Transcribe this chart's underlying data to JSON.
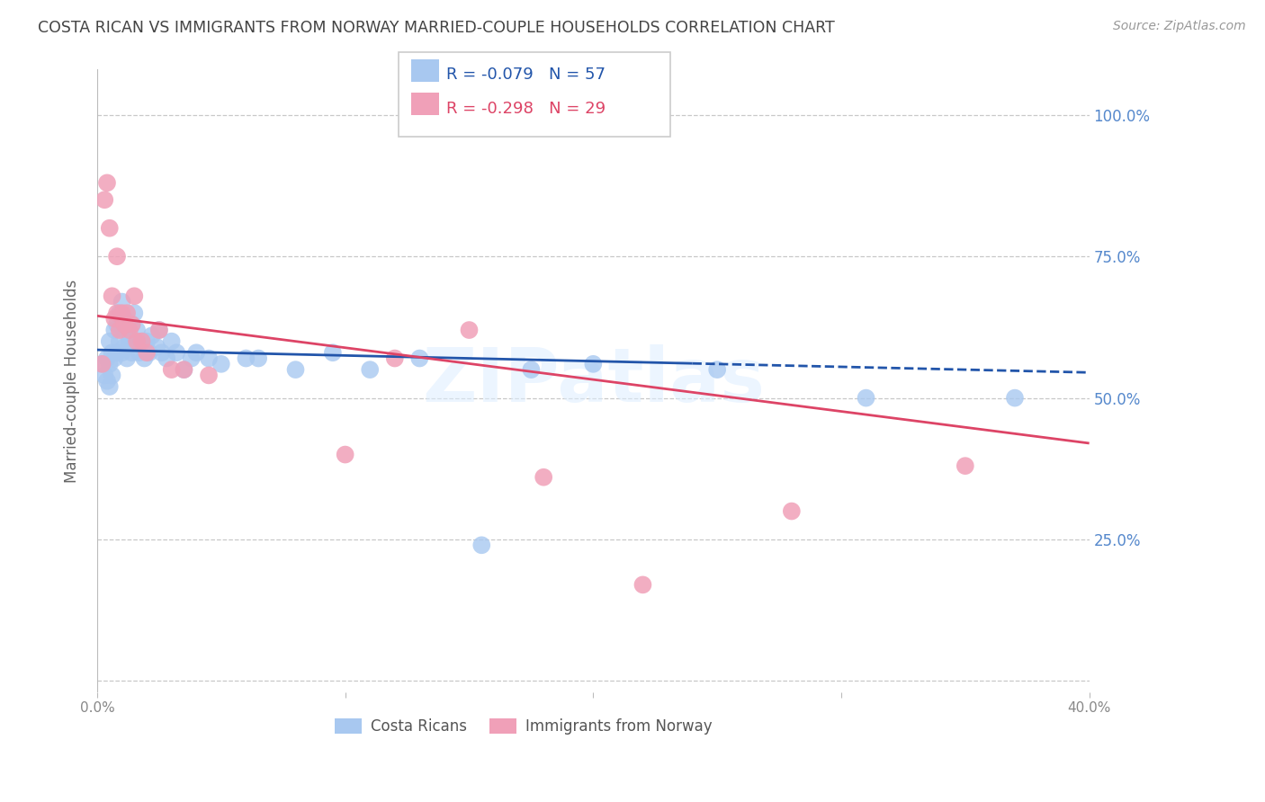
{
  "title": "COSTA RICAN VS IMMIGRANTS FROM NORWAY MARRIED-COUPLE HOUSEHOLDS CORRELATION CHART",
  "source": "Source: ZipAtlas.com",
  "ylabel": "Married-couple Households",
  "xlim": [
    0.0,
    0.4
  ],
  "ylim": [
    -0.02,
    1.08
  ],
  "legend_blue_r": "-0.079",
  "legend_blue_n": "57",
  "legend_pink_r": "-0.298",
  "legend_pink_n": "29",
  "blue_label": "Costa Ricans",
  "pink_label": "Immigrants from Norway",
  "background_color": "#ffffff",
  "grid_color": "#c8c8c8",
  "title_color": "#444444",
  "blue_color": "#a8c8f0",
  "pink_color": "#f0a0b8",
  "blue_line_color": "#2255aa",
  "pink_line_color": "#dd4466",
  "right_tick_color": "#5588cc",
  "watermark": "ZIPatlas",
  "blue_x": [
    0.002,
    0.003,
    0.004,
    0.004,
    0.005,
    0.005,
    0.005,
    0.006,
    0.006,
    0.007,
    0.007,
    0.008,
    0.008,
    0.009,
    0.009,
    0.01,
    0.01,
    0.01,
    0.011,
    0.011,
    0.012,
    0.012,
    0.013,
    0.014,
    0.014,
    0.015,
    0.015,
    0.016,
    0.017,
    0.018,
    0.019,
    0.02,
    0.021,
    0.022,
    0.024,
    0.025,
    0.026,
    0.028,
    0.03,
    0.032,
    0.035,
    0.038,
    0.04,
    0.045,
    0.05,
    0.06,
    0.065,
    0.08,
    0.095,
    0.11,
    0.13,
    0.155,
    0.175,
    0.2,
    0.25,
    0.31,
    0.37
  ],
  "blue_y": [
    0.56,
    0.54,
    0.57,
    0.53,
    0.6,
    0.56,
    0.52,
    0.58,
    0.54,
    0.62,
    0.57,
    0.63,
    0.58,
    0.65,
    0.6,
    0.67,
    0.63,
    0.58,
    0.64,
    0.59,
    0.62,
    0.57,
    0.6,
    0.63,
    0.58,
    0.65,
    0.6,
    0.62,
    0.58,
    0.6,
    0.57,
    0.6,
    0.58,
    0.61,
    0.59,
    0.62,
    0.58,
    0.57,
    0.6,
    0.58,
    0.55,
    0.57,
    0.58,
    0.57,
    0.56,
    0.57,
    0.57,
    0.55,
    0.58,
    0.55,
    0.57,
    0.24,
    0.55,
    0.56,
    0.55,
    0.5,
    0.5
  ],
  "pink_x": [
    0.002,
    0.003,
    0.004,
    0.005,
    0.006,
    0.007,
    0.008,
    0.008,
    0.009,
    0.01,
    0.011,
    0.012,
    0.013,
    0.014,
    0.015,
    0.016,
    0.018,
    0.02,
    0.025,
    0.03,
    0.035,
    0.045,
    0.1,
    0.12,
    0.15,
    0.18,
    0.22,
    0.28,
    0.35
  ],
  "pink_y": [
    0.56,
    0.85,
    0.88,
    0.8,
    0.68,
    0.64,
    0.75,
    0.65,
    0.62,
    0.65,
    0.63,
    0.65,
    0.62,
    0.63,
    0.68,
    0.6,
    0.6,
    0.58,
    0.62,
    0.55,
    0.55,
    0.54,
    0.4,
    0.57,
    0.62,
    0.36,
    0.17,
    0.3,
    0.38
  ]
}
